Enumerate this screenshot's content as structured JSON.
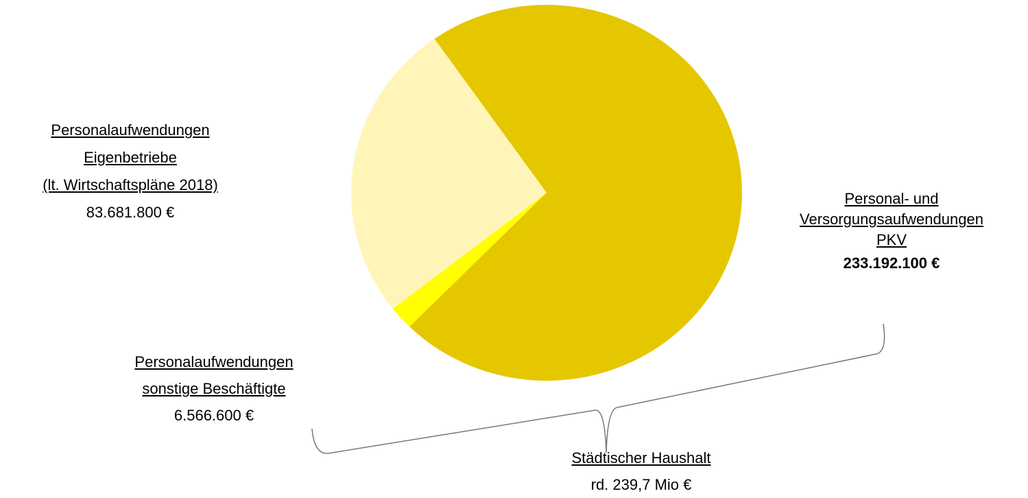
{
  "chart_data": {
    "type": "pie",
    "categories": [
      "Personal- und\nVersorgungsaufwendungen\nPKV",
      "Personalaufwendungen\nsonstige Beschäftigte",
      "Personalaufwendungen\nEigenbetriebe\n(lt. Wirtschaftspläne 2018)"
    ],
    "values": [
      233192100,
      6566600,
      83681800
    ],
    "value_labels": [
      "233.192.100  €",
      "6.566.600  €",
      "83.681.800  €"
    ],
    "colors": [
      "#e5c700",
      "#ffff00",
      "#fff5b8"
    ],
    "annotations": [
      "Städtischer Haushalt",
      "rd. 239,7 Mio €"
    ]
  }
}
